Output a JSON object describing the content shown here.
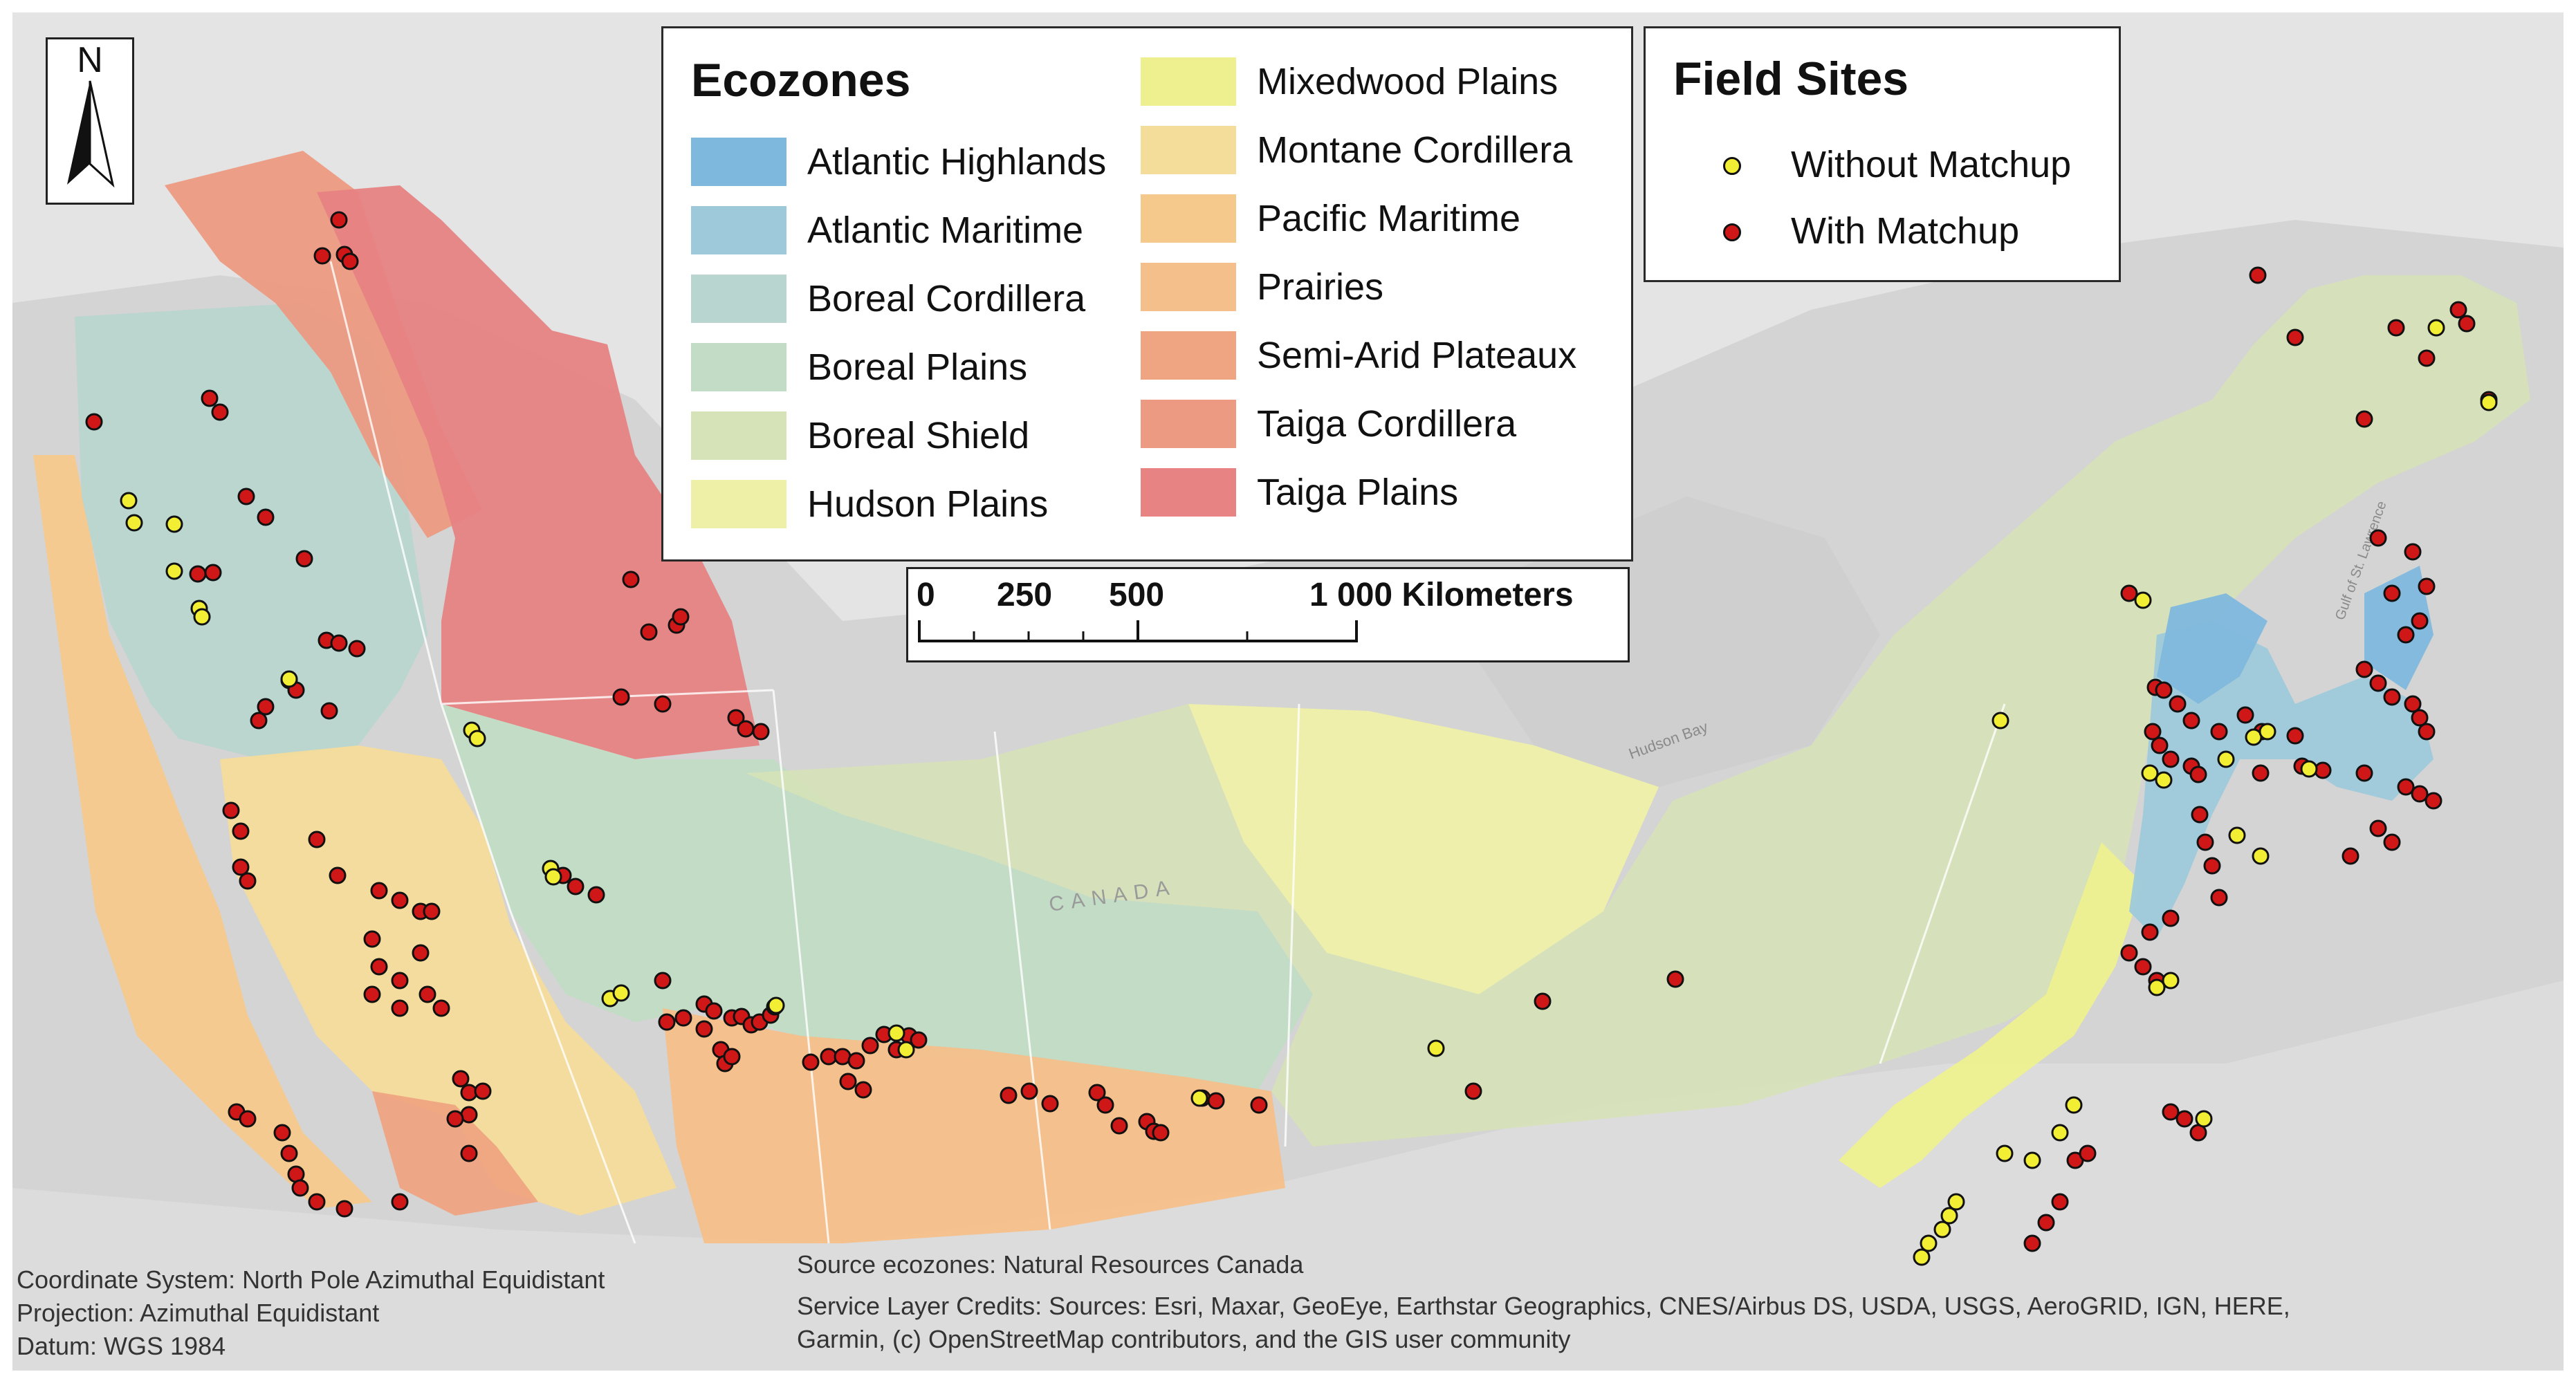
{
  "colors": {
    "atlantic_highlands": "#7fb8dd",
    "atlantic_maritime": "#9ec9da",
    "boreal_cordillera": "#b9d5cf",
    "boreal_plains": "#c2dcc5",
    "boreal_shield": "#d6e2b8",
    "hudson_plains": "#eef0a8",
    "mixedwood_plains": "#eef08f",
    "montane_cordillera": "#f4dc9a",
    "pacific_maritime": "#f5c98c",
    "prairies": "#f4bf8a",
    "semi_arid_plateaux": "#efa482",
    "taiga_cordillera": "#ec9a82",
    "taiga_plains": "#e78383",
    "without_matchup": "#f2ee34",
    "with_matchup": "#d01717"
  },
  "north_arrow": {
    "letter": "N"
  },
  "ecozones_legend": {
    "title": "Ecozones",
    "items": [
      {
        "label": "Atlantic Highlands",
        "color": "#7fb8dd"
      },
      {
        "label": "Atlantic Maritime",
        "color": "#9ec9da"
      },
      {
        "label": "Boreal Cordillera",
        "color": "#b9d5cf"
      },
      {
        "label": "Boreal Plains",
        "color": "#c2dcc5"
      },
      {
        "label": "Boreal Shield",
        "color": "#d6e2b8"
      },
      {
        "label": "Hudson Plains",
        "color": "#eef0a8"
      },
      {
        "label": "Mixedwood Plains",
        "color": "#eef08f"
      },
      {
        "label": "Montane Cordillera",
        "color": "#f4dc9a"
      },
      {
        "label": "Pacific Maritime",
        "color": "#f5c98c"
      },
      {
        "label": "Prairies",
        "color": "#f4bf8a"
      },
      {
        "label": "Semi-Arid Plateaux",
        "color": "#efa482"
      },
      {
        "label": "Taiga Cordillera",
        "color": "#ec9a82"
      },
      {
        "label": "Taiga Plains",
        "color": "#e78383"
      }
    ]
  },
  "field_sites_legend": {
    "title": "Field Sites",
    "items": [
      {
        "label": "Without Matchup",
        "color": "#f2ee34"
      },
      {
        "label": "With Matchup",
        "color": "#d01717"
      }
    ]
  },
  "scale_bar": {
    "ticks": [
      "0",
      "250",
      "500",
      "1 000 Kilometers"
    ]
  },
  "map_labels": {
    "country": "CANADA",
    "hudson_bay": "Hudson Bay",
    "gulf": "Gulf of St. Lawrence"
  },
  "credits": {
    "coordinate_system": "Coordinate System: North Pole Azimuthal Equidistant",
    "projection": "Projection: Azimuthal Equidistant",
    "datum": "Datum: WGS 1984",
    "source": "Source ecozones: Natural Resources Canada",
    "service_line1": "Service Layer Credits: Sources: Esri, Maxar, GeoEye, Earthstar Geographics, CNES/Airbus DS, USDA, USGS, AeroGRID, IGN, HERE,",
    "service_line2": "Garmin, (c) OpenStreetMap contributors, and the GIS user community"
  }
}
